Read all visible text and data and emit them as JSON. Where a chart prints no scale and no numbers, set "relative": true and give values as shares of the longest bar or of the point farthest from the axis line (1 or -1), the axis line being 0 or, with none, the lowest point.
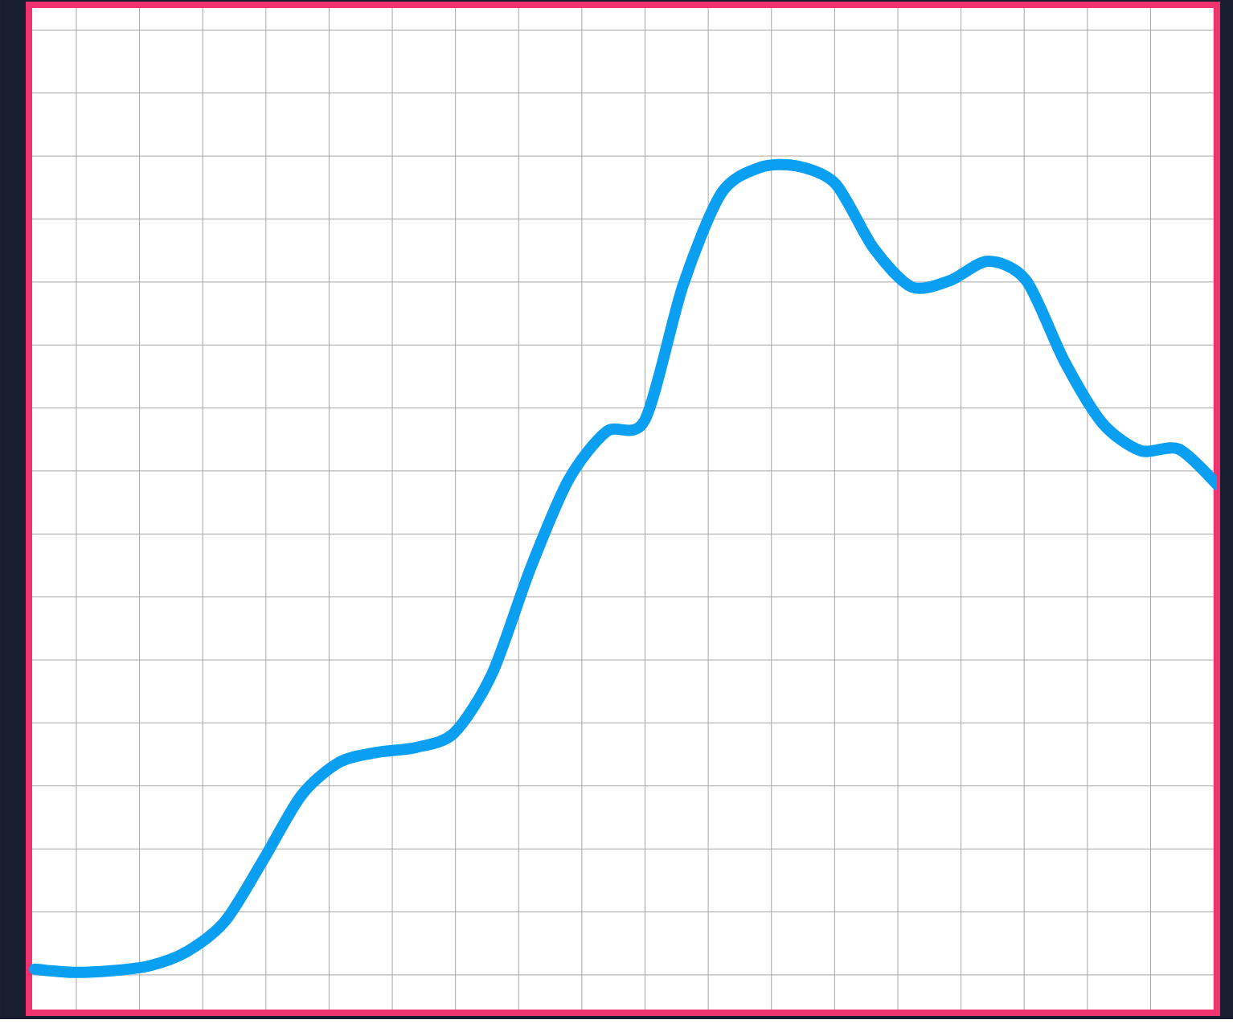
{
  "chart_data": {
    "type": "line",
    "relative": true,
    "grid": true,
    "categories": [
      null,
      null,
      null,
      null,
      null,
      null,
      null,
      null,
      null,
      null,
      null,
      null,
      null,
      null,
      null,
      null,
      null,
      null,
      null,
      null,
      null,
      null,
      null,
      null,
      null,
      null,
      null,
      null,
      null,
      null,
      null,
      null
    ],
    "series": [
      {
        "color": "#0a9ff0",
        "values": [
          0.004,
          0,
          0.002,
          0.008,
          0.026,
          0.064,
          0.14,
          0.22,
          0.261,
          0.273,
          0.279,
          0.297,
          0.371,
          0.501,
          0.611,
          0.671,
          0.685,
          0.852,
          0.966,
          0.998,
          1,
          0.978,
          0.898,
          0.85,
          0.858,
          0.882,
          0.858,
          0.758,
          0.681,
          0.647,
          0.649,
          0.605
        ]
      }
    ]
  }
}
